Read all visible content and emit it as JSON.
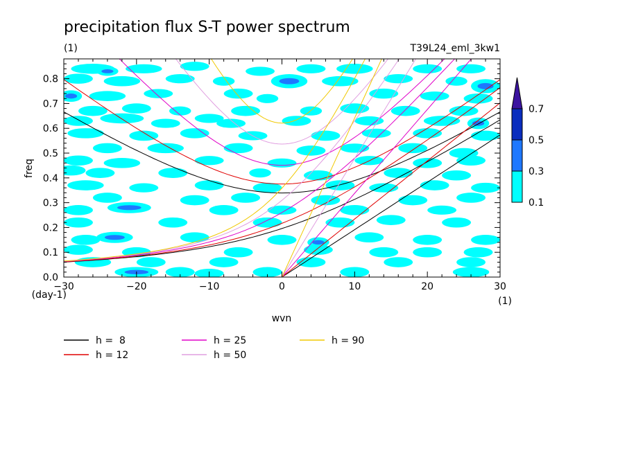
{
  "chart_data": {
    "type": "heatmap",
    "title": "precipitation flux S-T power spectrum",
    "subtitle_left": "(1)",
    "subtitle_right": "T39L24_eml_3kw1",
    "xlabel": "wvn",
    "ylabel": "freq",
    "x_unit": "(1)",
    "y_unit": "(day-1)",
    "xlim": [
      -30,
      30
    ],
    "ylim": [
      0,
      0.88
    ],
    "x_ticks": [
      -30,
      -20,
      -10,
      0,
      10,
      20,
      30
    ],
    "x_tick_labels": [
      "−30",
      "−20",
      "−10",
      "0",
      "10",
      "20",
      "30"
    ],
    "y_ticks": [
      0.0,
      0.1,
      0.2,
      0.3,
      0.4,
      0.5,
      0.6,
      0.7,
      0.8
    ],
    "y_tick_labels": [
      "0.0",
      "0.1",
      "0.2",
      "0.3",
      "0.4",
      "0.5",
      "0.6",
      "0.7",
      "0.8"
    ],
    "colorbar": {
      "levels": [
        0.1,
        0.3,
        0.5,
        0.7
      ],
      "level_labels": [
        "0.1",
        "0.3",
        "0.5",
        "0.7"
      ],
      "colors": [
        "#00ffff",
        "#1e78ff",
        "#0a2dbe",
        "#3c14a0"
      ],
      "extend": "max"
    },
    "dispersion_curves": [
      {
        "name": "h =  8",
        "h": 8,
        "color": "#000000"
      },
      {
        "name": "h = 12",
        "h": 12,
        "color": "#e00000"
      },
      {
        "name": "h = 25",
        "h": 25,
        "color": "#e000c8"
      },
      {
        "name": "h = 50",
        "h": 50,
        "color": "#e09ee0"
      },
      {
        "name": "h = 90",
        "h": 90,
        "color": "#f0c800"
      }
    ],
    "blobs": [
      [
        -26,
        0.84,
        3,
        0.012,
        1
      ],
      [
        -24,
        0.83,
        1.5,
        0.01,
        2
      ],
      [
        -19,
        0.84,
        2.5,
        0.01,
        1
      ],
      [
        -12,
        0.85,
        2,
        0.01,
        1
      ],
      [
        -3,
        0.83,
        2,
        0.01,
        1
      ],
      [
        1,
        0.79,
        2.5,
        0.02,
        2
      ],
      [
        4,
        0.84,
        2,
        0.01,
        1
      ],
      [
        10,
        0.84,
        2.5,
        0.012,
        1
      ],
      [
        20,
        0.84,
        2,
        0.01,
        1
      ],
      [
        26,
        0.84,
        2,
        0.01,
        1
      ],
      [
        -28,
        0.8,
        2,
        0.012,
        1
      ],
      [
        -22,
        0.79,
        2.5,
        0.012,
        1
      ],
      [
        -14,
        0.8,
        2,
        0.01,
        1
      ],
      [
        -8,
        0.79,
        1.5,
        0.01,
        1
      ],
      [
        8,
        0.79,
        2.5,
        0.012,
        1
      ],
      [
        16,
        0.8,
        2,
        0.01,
        1
      ],
      [
        24,
        0.79,
        1.5,
        0.01,
        1
      ],
      [
        28,
        0.77,
        2,
        0.02,
        2
      ],
      [
        -29,
        0.73,
        1.5,
        0.015,
        2
      ],
      [
        -24,
        0.73,
        2.5,
        0.012,
        1
      ],
      [
        -17,
        0.74,
        2,
        0.01,
        1
      ],
      [
        -6,
        0.74,
        2,
        0.012,
        1
      ],
      [
        -2,
        0.72,
        1.5,
        0.01,
        1
      ],
      [
        14,
        0.74,
        2,
        0.012,
        1
      ],
      [
        21,
        0.73,
        2,
        0.01,
        1
      ],
      [
        27,
        0.72,
        2,
        0.012,
        1
      ],
      [
        -26,
        0.67,
        2,
        0.012,
        1
      ],
      [
        -20,
        0.68,
        2,
        0.012,
        1
      ],
      [
        -14,
        0.67,
        1.5,
        0.01,
        1
      ],
      [
        -5,
        0.67,
        2,
        0.012,
        1
      ],
      [
        4,
        0.67,
        1.5,
        0.01,
        1
      ],
      [
        10,
        0.68,
        2,
        0.012,
        1
      ],
      [
        17,
        0.67,
        2,
        0.012,
        1
      ],
      [
        25,
        0.67,
        2,
        0.012,
        1
      ],
      [
        -28,
        0.63,
        2,
        0.012,
        1
      ],
      [
        -22,
        0.64,
        3,
        0.012,
        1
      ],
      [
        -16,
        0.62,
        2,
        0.01,
        1
      ],
      [
        -10,
        0.64,
        2,
        0.01,
        1
      ],
      [
        -7,
        0.62,
        2,
        0.01,
        1
      ],
      [
        2,
        0.63,
        2,
        0.012,
        1
      ],
      [
        12,
        0.63,
        2,
        0.01,
        1
      ],
      [
        22,
        0.63,
        2.5,
        0.012,
        1
      ],
      [
        27,
        0.62,
        1.5,
        0.015,
        2
      ],
      [
        -27,
        0.58,
        2.5,
        0.012,
        1
      ],
      [
        -19,
        0.57,
        2,
        0.012,
        1
      ],
      [
        -12,
        0.58,
        2,
        0.012,
        1
      ],
      [
        -4,
        0.57,
        2,
        0.01,
        1
      ],
      [
        6,
        0.57,
        2,
        0.012,
        1
      ],
      [
        13,
        0.58,
        2,
        0.01,
        1
      ],
      [
        20,
        0.58,
        2,
        0.012,
        1
      ],
      [
        28,
        0.57,
        2,
        0.012,
        1
      ],
      [
        -24,
        0.52,
        2,
        0.012,
        1
      ],
      [
        -16,
        0.52,
        2.5,
        0.012,
        1
      ],
      [
        -6,
        0.52,
        2,
        0.012,
        1
      ],
      [
        4,
        0.51,
        2,
        0.012,
        1
      ],
      [
        10,
        0.52,
        2,
        0.01,
        1
      ],
      [
        18,
        0.52,
        2,
        0.012,
        1
      ],
      [
        25,
        0.5,
        2,
        0.012,
        1
      ],
      [
        -28,
        0.47,
        2,
        0.012,
        1
      ],
      [
        -22,
        0.46,
        2.5,
        0.012,
        1
      ],
      [
        -10,
        0.47,
        2,
        0.01,
        1
      ],
      [
        0,
        0.46,
        2,
        0.01,
        1
      ],
      [
        12,
        0.47,
        2,
        0.01,
        1
      ],
      [
        20,
        0.46,
        2,
        0.012,
        1
      ],
      [
        26,
        0.47,
        2,
        0.012,
        1
      ],
      [
        -29,
        0.43,
        2,
        0.012,
        1
      ],
      [
        -25,
        0.42,
        2,
        0.012,
        1
      ],
      [
        -15,
        0.42,
        2,
        0.012,
        1
      ],
      [
        -3,
        0.42,
        1.5,
        0.01,
        1
      ],
      [
        5,
        0.41,
        2,
        0.012,
        1
      ],
      [
        16,
        0.42,
        2,
        0.012,
        1
      ],
      [
        24,
        0.41,
        2,
        0.012,
        1
      ],
      [
        -27,
        0.37,
        2.5,
        0.012,
        1
      ],
      [
        -19,
        0.36,
        2,
        0.01,
        1
      ],
      [
        -10,
        0.37,
        2,
        0.012,
        1
      ],
      [
        -2,
        0.36,
        2,
        0.012,
        1
      ],
      [
        8,
        0.37,
        2,
        0.012,
        1
      ],
      [
        14,
        0.36,
        2,
        0.01,
        1
      ],
      [
        21,
        0.37,
        2,
        0.012,
        1
      ],
      [
        28,
        0.36,
        2,
        0.012,
        1
      ],
      [
        -24,
        0.32,
        2,
        0.012,
        1
      ],
      [
        -12,
        0.31,
        2,
        0.012,
        1
      ],
      [
        -5,
        0.32,
        2,
        0.012,
        1
      ],
      [
        6,
        0.31,
        2,
        0.012,
        1
      ],
      [
        18,
        0.31,
        2,
        0.012,
        1
      ],
      [
        26,
        0.32,
        2,
        0.012,
        1
      ],
      [
        -21,
        0.28,
        3,
        0.014,
        2
      ],
      [
        -28,
        0.27,
        2,
        0.012,
        1
      ],
      [
        -8,
        0.27,
        2,
        0.012,
        1
      ],
      [
        0,
        0.27,
        2,
        0.01,
        1
      ],
      [
        10,
        0.27,
        2,
        0.012,
        1
      ],
      [
        22,
        0.27,
        2,
        0.01,
        1
      ],
      [
        -28,
        0.22,
        2,
        0.012,
        1
      ],
      [
        -15,
        0.22,
        2,
        0.012,
        1
      ],
      [
        -2,
        0.22,
        2,
        0.012,
        1
      ],
      [
        8,
        0.22,
        2,
        0.012,
        1
      ],
      [
        15,
        0.23,
        2,
        0.012,
        1
      ],
      [
        24,
        0.22,
        2,
        0.012,
        1
      ],
      [
        -23,
        0.16,
        2.5,
        0.014,
        2
      ],
      [
        -27,
        0.15,
        2,
        0.012,
        1
      ],
      [
        -12,
        0.16,
        2,
        0.012,
        1
      ],
      [
        0,
        0.15,
        2,
        0.012,
        1
      ],
      [
        5,
        0.14,
        1.5,
        0.012,
        2
      ],
      [
        12,
        0.16,
        2,
        0.012,
        1
      ],
      [
        20,
        0.15,
        2,
        0.012,
        1
      ],
      [
        28,
        0.15,
        2,
        0.012,
        1
      ],
      [
        -28,
        0.11,
        2,
        0.012,
        1
      ],
      [
        -20,
        0.1,
        2,
        0.012,
        1
      ],
      [
        -6,
        0.1,
        2,
        0.012,
        1
      ],
      [
        5,
        0.11,
        2,
        0.012,
        1
      ],
      [
        14,
        0.1,
        2,
        0.012,
        1
      ],
      [
        20,
        0.1,
        2,
        0.012,
        1
      ],
      [
        27,
        0.1,
        2,
        0.012,
        1
      ],
      [
        -26,
        0.06,
        2.5,
        0.012,
        1
      ],
      [
        -18,
        0.06,
        2,
        0.012,
        1
      ],
      [
        -8,
        0.06,
        2,
        0.012,
        1
      ],
      [
        4,
        0.06,
        2,
        0.012,
        1
      ],
      [
        16,
        0.06,
        2,
        0.012,
        1
      ],
      [
        26,
        0.06,
        2,
        0.012,
        1
      ],
      [
        -20,
        0.02,
        3,
        0.012,
        2
      ],
      [
        -14,
        0.02,
        2,
        0.012,
        1
      ],
      [
        -2,
        0.02,
        2,
        0.012,
        1
      ],
      [
        10,
        0.02,
        2,
        0.012,
        1
      ],
      [
        26,
        0.02,
        2.5,
        0.012,
        1
      ],
      [
        -10,
        0.015,
        2,
        0.01,
        1
      ]
    ]
  }
}
